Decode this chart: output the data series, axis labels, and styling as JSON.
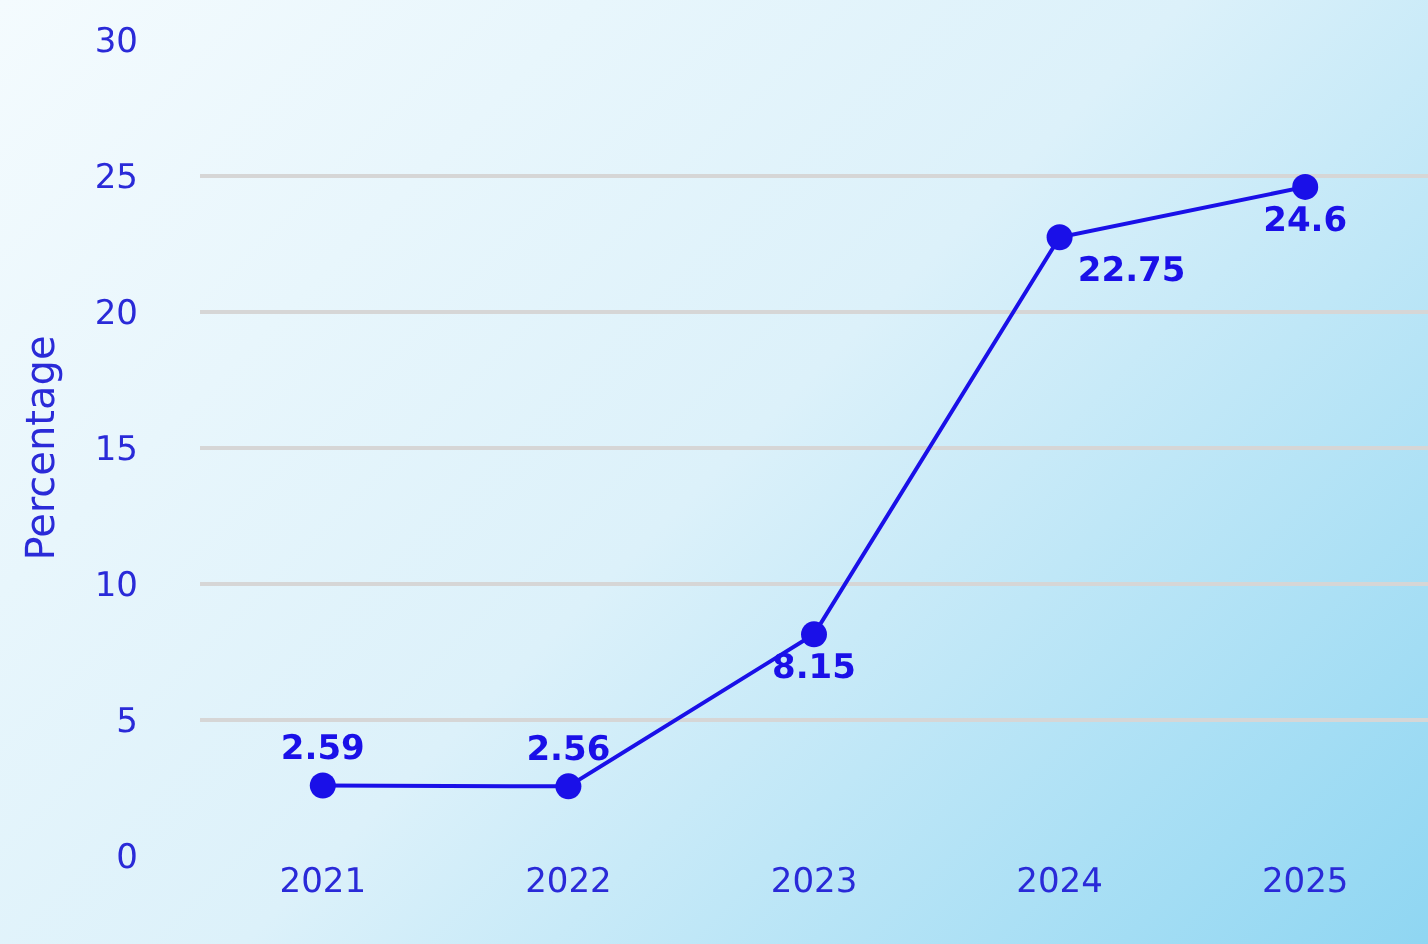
{
  "chart_data": {
    "type": "line",
    "ylabel": "Percentage",
    "categories": [
      "2021",
      "2022",
      "2023",
      "2024",
      "2025"
    ],
    "series": [
      {
        "color": "#1a10e8",
        "values": [
          2.59,
          2.56,
          8.15,
          22.75,
          24.6
        ]
      }
    ],
    "ylim": [
      0,
      30
    ],
    "yticks": [
      0,
      5,
      10,
      15,
      20,
      25,
      30
    ],
    "grid": "y",
    "marker": "circle",
    "line_style": "solid",
    "data_labels": true,
    "legend": false
  }
}
